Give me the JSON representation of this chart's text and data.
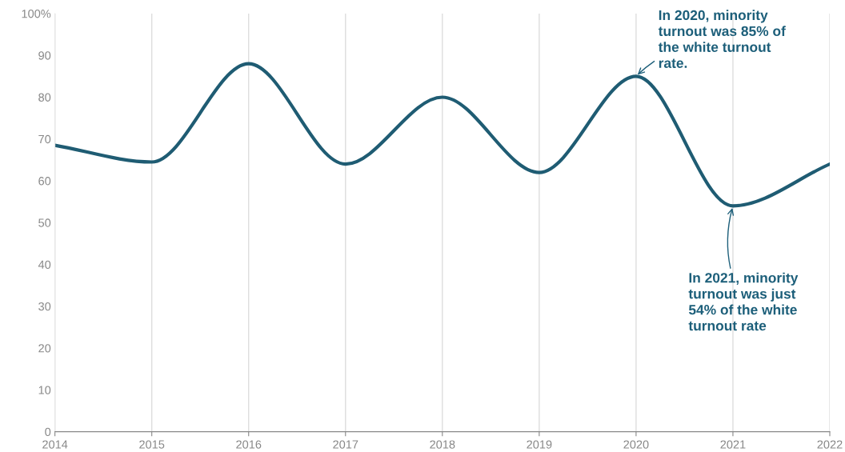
{
  "chart_data": {
    "type": "line",
    "x": [
      2014,
      2015,
      2016,
      2017,
      2018,
      2019,
      2020,
      2021,
      2022
    ],
    "series": [
      {
        "color": "#1f5c73",
        "values": [
          68.5,
          64.5,
          88,
          64,
          80,
          62,
          85,
          54,
          64
        ]
      }
    ],
    "xlim": [
      2014,
      2022
    ],
    "xticks": [
      2014,
      2015,
      2016,
      2017,
      2018,
      2019,
      2020,
      2021,
      2022
    ],
    "ylim": [
      0,
      100
    ],
    "yticks": [
      0,
      10,
      20,
      30,
      40,
      50,
      60,
      70,
      80,
      90,
      {
        "value": 100,
        "label": "100%"
      }
    ],
    "grid": "x",
    "marker": "none",
    "line_style": "solid",
    "annotations": [
      {
        "text": "In 2020, minority\nturnout was 85% of\nthe white turnout\nrate.",
        "x": 2020,
        "y": 85
      },
      {
        "text": "In 2021, minority\nturnout was just\n54% of the white\nturnout rate",
        "x": 2021,
        "y": 54
      }
    ]
  }
}
